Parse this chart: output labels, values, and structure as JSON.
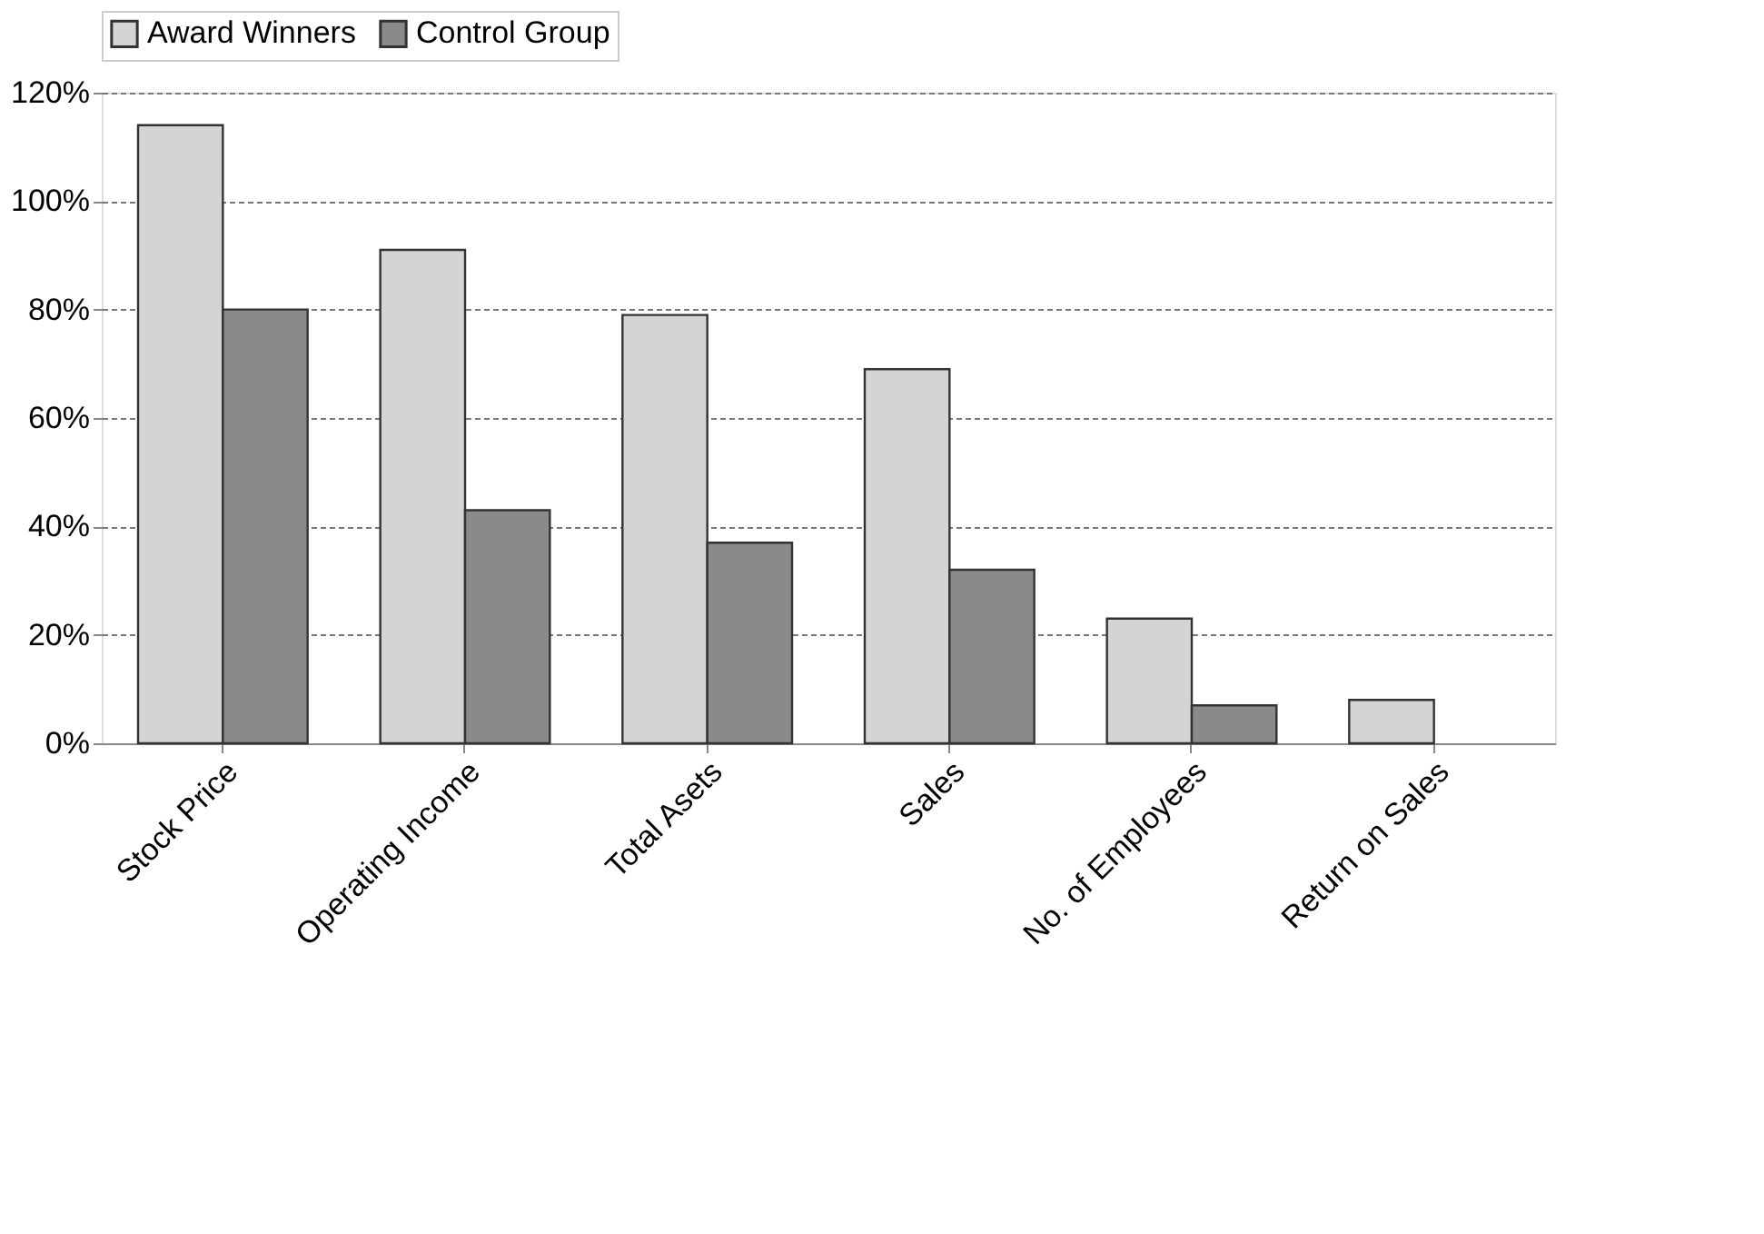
{
  "chart_data": {
    "type": "bar",
    "categories": [
      "Stock Price",
      "Operating Income",
      "Total Asets",
      "Sales",
      "No. of Employees",
      "Return on Sales"
    ],
    "series": [
      {
        "name": "Award Winners",
        "color": "#d4d4d4",
        "values": [
          114,
          91,
          79,
          69,
          23,
          8
        ]
      },
      {
        "name": "Control Group",
        "color": "#8a8a8a",
        "values": [
          80,
          43,
          37,
          32,
          7,
          null
        ]
      }
    ],
    "ylim": [
      0,
      120
    ],
    "yticks": [
      {
        "value": 0,
        "label": "0%"
      },
      {
        "value": 20,
        "label": "20%"
      },
      {
        "value": 40,
        "label": "40%"
      },
      {
        "value": 60,
        "label": "60%"
      },
      {
        "value": 80,
        "label": "80%"
      },
      {
        "value": 100,
        "label": "100%"
      },
      {
        "value": 120,
        "label": "120%"
      }
    ],
    "grid": "y",
    "legend": "top"
  }
}
